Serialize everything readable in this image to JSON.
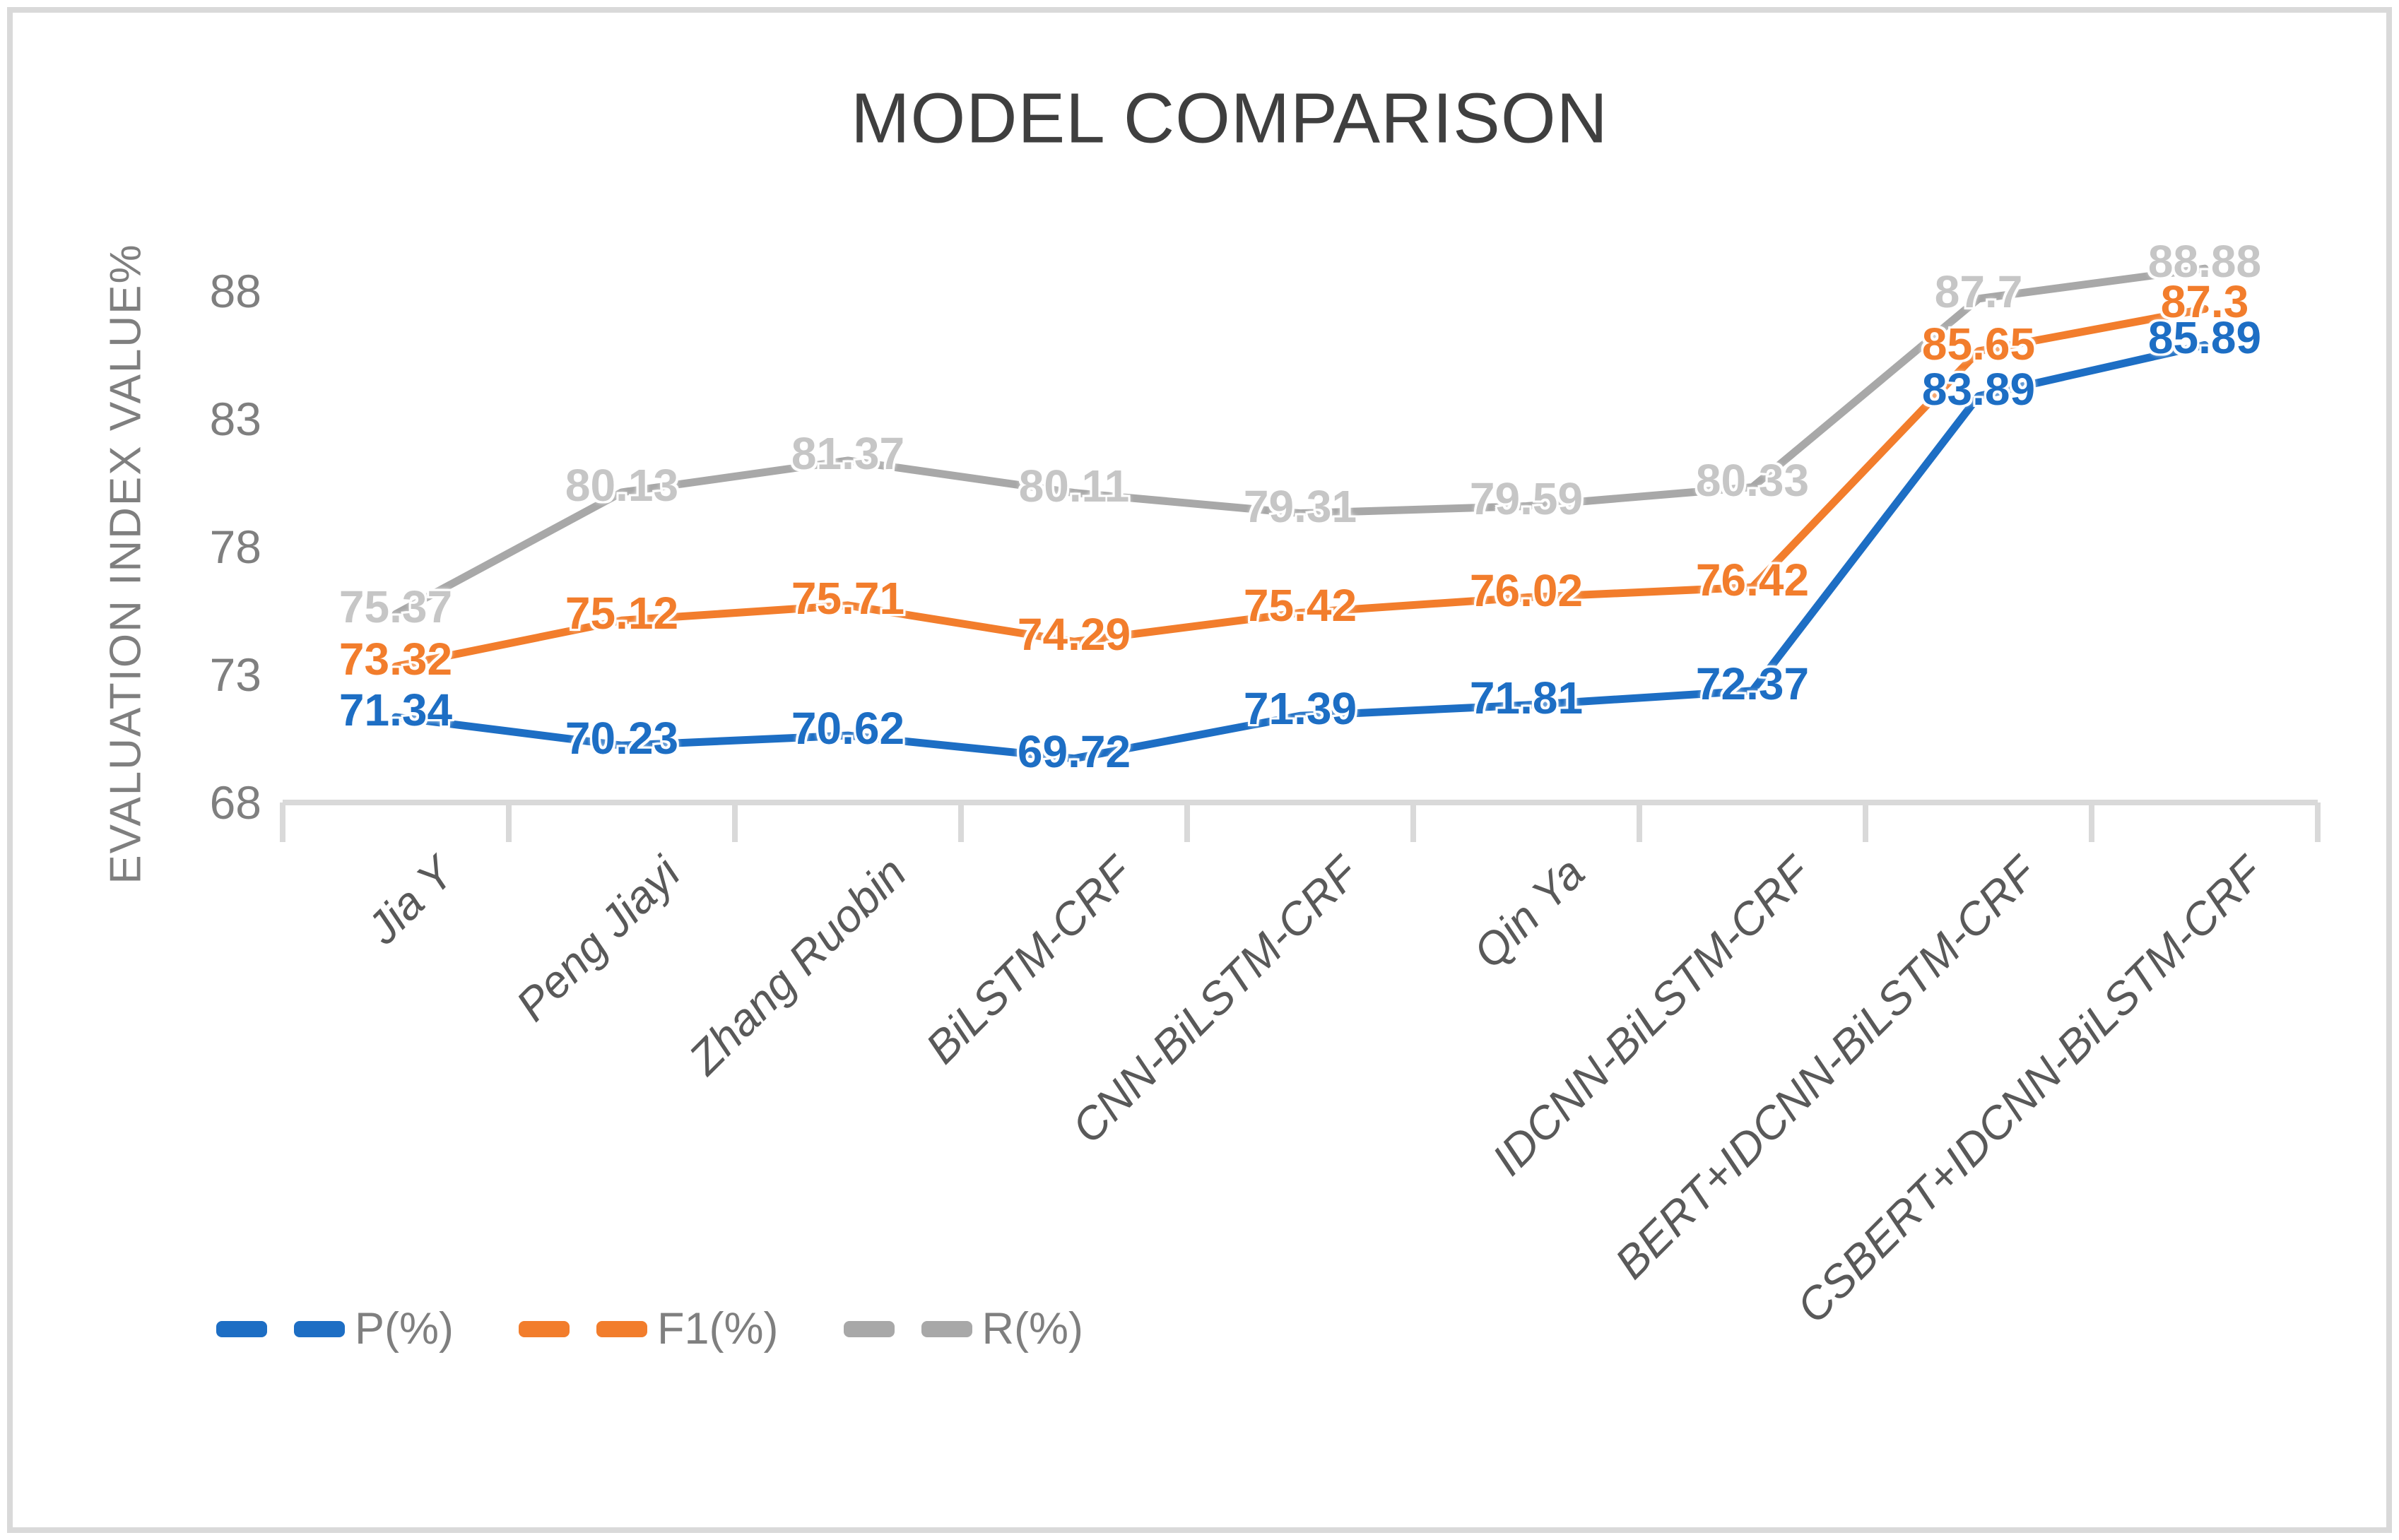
{
  "title": "MODEL COMPARISON",
  "y_axis": {
    "title": "EVALUATION INDEX VALUE%",
    "tick_labels": [
      "88",
      "83",
      "78",
      "73",
      "68"
    ]
  },
  "colors": {
    "p_series": "#1d6ec4",
    "f1_series": "#f27d2c",
    "r_series": "#a8a8a8",
    "r_label": "#c6c6c6",
    "axis_line": "#d9d9d9",
    "title_text": "#3f3f3f",
    "axis_text": "#7f7f7f",
    "category_text": "#595959"
  },
  "chart_data": {
    "type": "line",
    "title": "MODEL COMPARISON",
    "ylabel": "EVALUATION INDEX VALUE%",
    "xlabel": "",
    "ylim": [
      68,
      88
    ],
    "yticks": [
      68,
      73,
      78,
      83,
      88
    ],
    "grid": false,
    "legend_position": "bottom-left",
    "categories": [
      "Jia Y",
      "Peng Jiayi",
      "Zhang Ruobin",
      "BiLSTM-CRF",
      "CNN-BiLSTM-CRF",
      "Qin Ya",
      "IDCNN-BiLSTM-CRF",
      "BERT+IDCNN-BiLSTM-CRF",
      "CSBERT+IDCNN-BiLSTM-CRF"
    ],
    "series": [
      {
        "name": "P(%)",
        "color": "#1d6ec4",
        "label_color": "#1d6ec4",
        "values": [
          71.34,
          70.23,
          70.62,
          69.72,
          71.39,
          71.81,
          72.37,
          83.89,
          85.89
        ],
        "labels": [
          "71.34",
          "70.23",
          "70.62",
          "69.72",
          "71.39",
          "71.81",
          "72.37",
          "83.89",
          "85.89"
        ]
      },
      {
        "name": "F1(%)",
        "color": "#f27d2c",
        "label_color": "#f27d2c",
        "values": [
          73.32,
          75.12,
          75.71,
          74.29,
          75.42,
          76.02,
          76.42,
          85.65,
          87.3
        ],
        "labels": [
          "73.32",
          "75.12",
          "75.71",
          "74.29",
          "75.42",
          "76.02",
          "76.42",
          "85.65",
          "87.3"
        ]
      },
      {
        "name": "R(%)",
        "color": "#a8a8a8",
        "label_color": "#c6c6c6",
        "values": [
          75.37,
          80.13,
          81.37,
          80.11,
          79.31,
          79.59,
          80.33,
          87.7,
          88.88
        ],
        "labels": [
          "75.37",
          "80.13",
          "81.37",
          "80.11",
          "79.31",
          "79.59",
          "80.33",
          "87.7",
          "88.88"
        ]
      }
    ]
  }
}
